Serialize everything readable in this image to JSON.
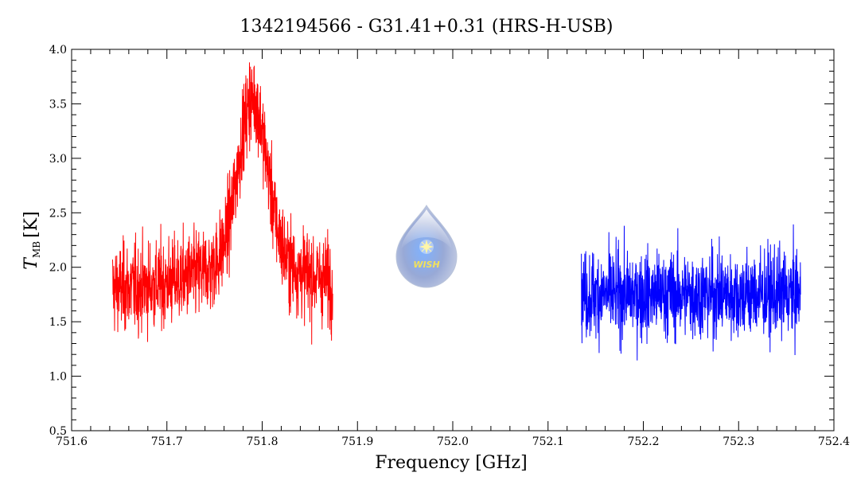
{
  "chart_data": {
    "type": "line",
    "title": "1342194566 - G31.41+0.31 (HRS-H-USB)",
    "xlabel": "Frequency [GHz]",
    "ylabel_main": "T",
    "ylabel_sub": "MB",
    "ylabel_unit": "[K]",
    "xlim": [
      751.6,
      752.4
    ],
    "ylim": [
      0.5,
      4.0
    ],
    "xticks": [
      751.6,
      751.7,
      751.8,
      751.9,
      752.0,
      752.1,
      752.2,
      752.3,
      752.4
    ],
    "yticks": [
      0.5,
      1.0,
      1.5,
      2.0,
      2.5,
      3.0,
      3.5,
      4.0
    ],
    "xtick_labels": [
      "751.6",
      "751.7",
      "751.8",
      "751.9",
      "752.0",
      "752.1",
      "752.2",
      "752.3",
      "752.4"
    ],
    "ytick_labels": [
      "0.5",
      "1.0",
      "1.5",
      "2.0",
      "2.5",
      "3.0",
      "3.5",
      "4.0"
    ],
    "grid": false,
    "series": [
      {
        "color": "#ff0000",
        "x_range": [
          751.643,
          751.874
        ],
        "baseline": 1.8,
        "noise_rms": 0.2,
        "line_center": 751.79,
        "line_peak": 3.3,
        "line_width": 0.015
      },
      {
        "color": "#0000ff",
        "x_range": [
          752.135,
          752.365
        ],
        "baseline": 1.75,
        "noise_rms": 0.2
      }
    ],
    "logo_text": "WISH"
  }
}
